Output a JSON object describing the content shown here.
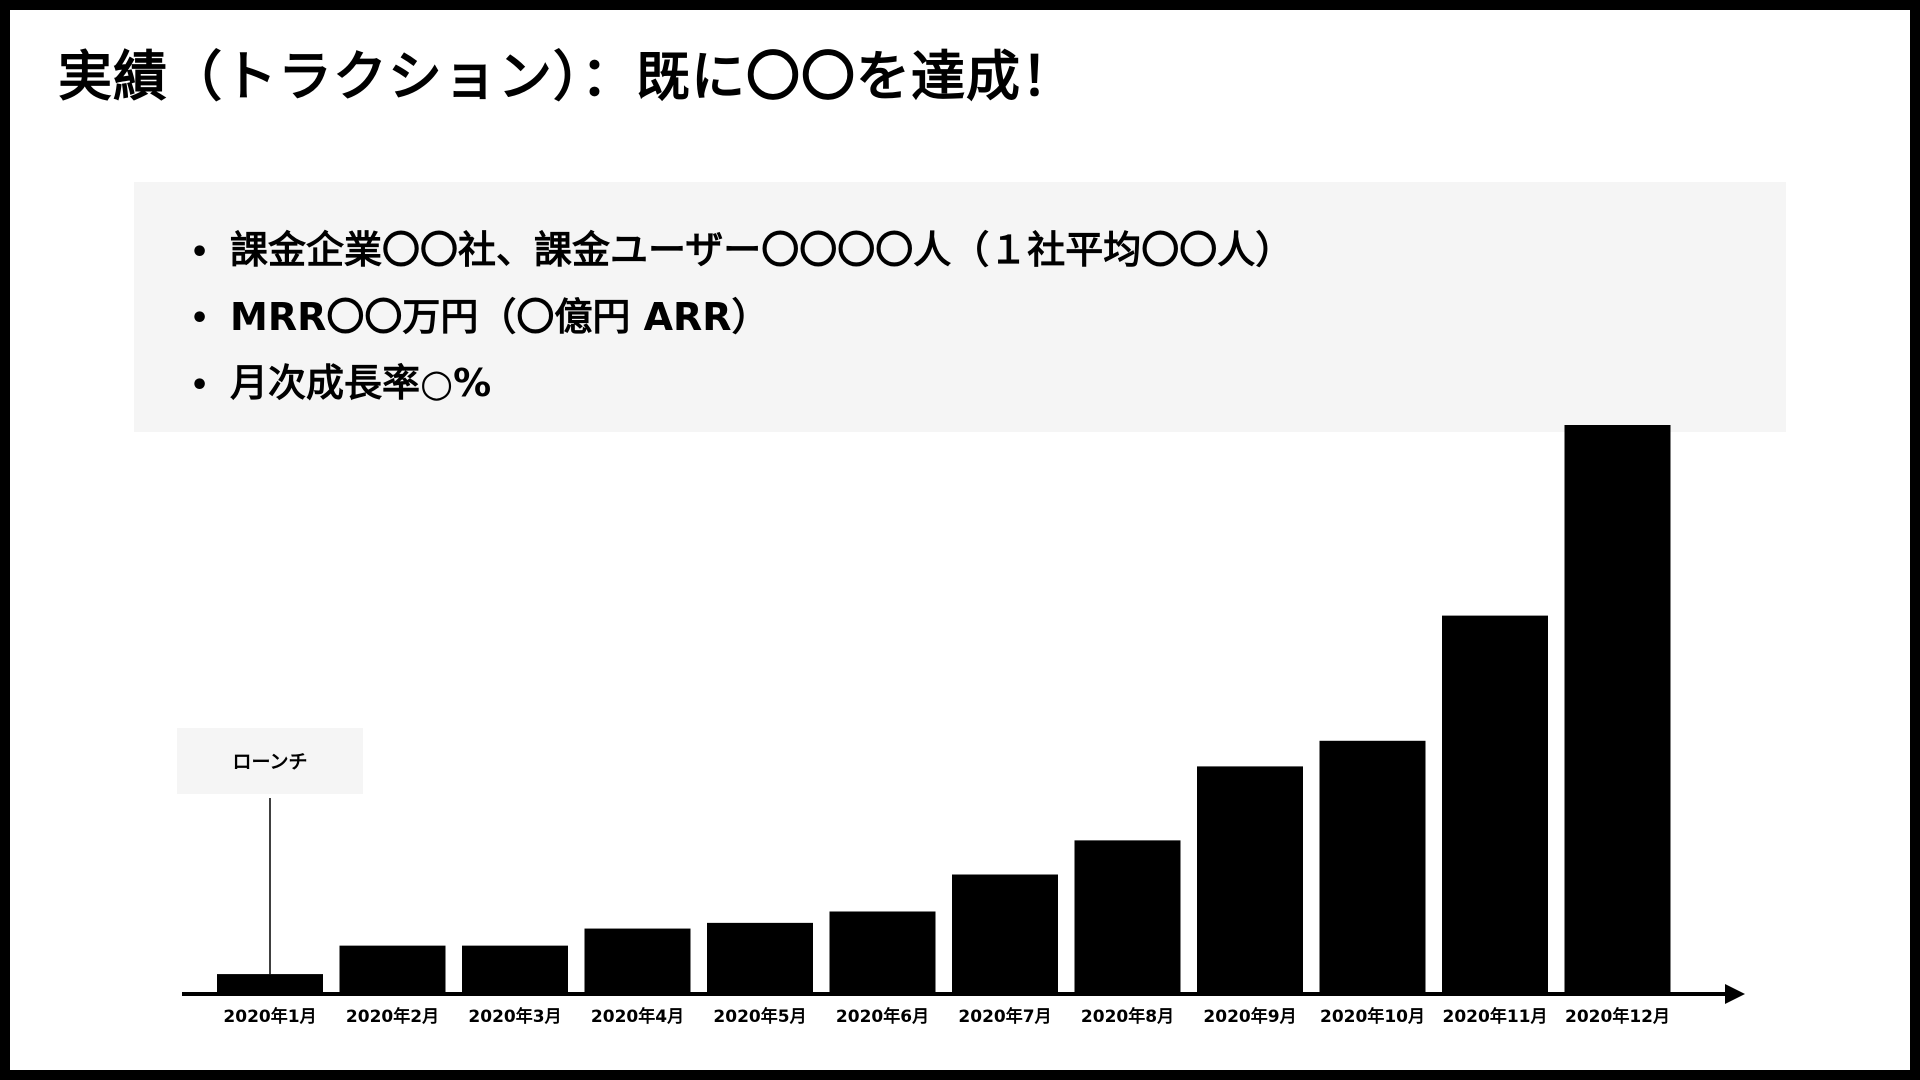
{
  "title": "実績（トラクション）：既に〇〇を達成！",
  "bullets": [
    "課金企業〇〇社、課金ユーザー〇〇〇〇人（１社平均〇〇人）",
    "MRR〇〇万円（〇億円 ARR）",
    "月次成長率○%"
  ],
  "annotation": {
    "label": "ローンチ",
    "category_index": 0
  },
  "chart_data": {
    "type": "bar",
    "title": "",
    "xlabel": "",
    "ylabel": "",
    "categories": [
      "2020年1月",
      "2020年2月",
      "2020年3月",
      "2020年4月",
      "2020年5月",
      "2020年6月",
      "2020年7月",
      "2020年8月",
      "2020年9月",
      "2020年10月",
      "2020年11月",
      "2020年12月"
    ],
    "values": [
      3.5,
      8.5,
      8.5,
      11.5,
      12.5,
      14.5,
      21,
      27,
      40,
      44.5,
      66.5,
      100
    ],
    "ylim": [
      0,
      100
    ],
    "grid": false,
    "bar_color": "#000000",
    "axis_arrow": true
  }
}
